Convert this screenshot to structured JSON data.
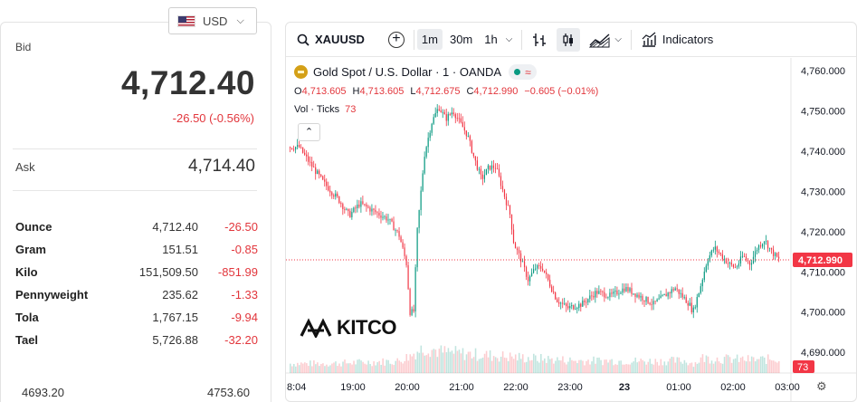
{
  "currency": {
    "label": "USD"
  },
  "bid": {
    "label": "Bid",
    "value": "4,712.40",
    "change": "-26.50 (-0.56%)"
  },
  "ask": {
    "label": "Ask",
    "value": "4,714.40"
  },
  "units": [
    {
      "name": "Ounce",
      "price": "4,712.40",
      "change": "-26.50"
    },
    {
      "name": "Gram",
      "price": "151.51",
      "change": "-0.85"
    },
    {
      "name": "Kilo",
      "price": "151,509.50",
      "change": "-851.99"
    },
    {
      "name": "Pennyweight",
      "price": "235.62",
      "change": "-1.33"
    },
    {
      "name": "Tola",
      "price": "1,767.15",
      "change": "-9.94"
    },
    {
      "name": "Tael",
      "price": "5,726.88",
      "change": "-32.20"
    }
  ],
  "range": {
    "low": "4693.20",
    "high": "4753.60"
  },
  "toolbar": {
    "symbol": "XAUUSD",
    "intervals": [
      "1m",
      "30m",
      "1h"
    ],
    "active_interval": "1m",
    "indicators_label": "Indicators"
  },
  "legend": {
    "title": "Gold Spot / U.S. Dollar · 1 · OANDA",
    "open_key": "O",
    "open": "4,713.605",
    "high_key": "H",
    "high": "4,713.605",
    "low_key": "L",
    "low": "4,712.675",
    "close_key": "C",
    "close": "4,712.990",
    "change": "−0.605 (−0.01%)",
    "vol_label": "Vol · Ticks",
    "vol_value": "73"
  },
  "branding": {
    "logo_text": "KITCO"
  },
  "colors": {
    "up": "#089981",
    "down": "#f23645",
    "last_price": "#f23645",
    "text": "#131722"
  },
  "chart_data": {
    "type": "candlestick",
    "y_ticks": [
      "4,760.000",
      "4,750.000",
      "4,740.000",
      "4,730.000",
      "4,720.000",
      "4,710.000",
      "4,700.000",
      "4,690.000"
    ],
    "y_range": [
      4686,
      4762
    ],
    "x_ticks": [
      "8:04",
      "19:00",
      "20:00",
      "21:00",
      "22:00",
      "23:00",
      "23",
      "01:00",
      "02:00",
      "03:00"
    ],
    "last_price": "4,712.990",
    "last_price_value": 4712.99,
    "last_volume": "73",
    "path": [
      [
        0,
        4741
      ],
      [
        3,
        4741
      ],
      [
        6,
        4737
      ],
      [
        10,
        4732
      ],
      [
        14,
        4728
      ],
      [
        17,
        4724
      ],
      [
        20,
        4727
      ],
      [
        24,
        4725
      ],
      [
        28,
        4723
      ],
      [
        31,
        4719
      ],
      [
        33,
        4712
      ],
      [
        34,
        4700
      ],
      [
        35,
        4700
      ],
      [
        36,
        4720
      ],
      [
        38,
        4739
      ],
      [
        40,
        4747
      ],
      [
        42,
        4751
      ],
      [
        44,
        4748
      ],
      [
        46,
        4750
      ],
      [
        48,
        4747
      ],
      [
        50,
        4744
      ],
      [
        52,
        4738
      ],
      [
        54,
        4733
      ],
      [
        56,
        4736
      ],
      [
        58,
        4736
      ],
      [
        60,
        4730
      ],
      [
        62,
        4724
      ],
      [
        63,
        4717
      ],
      [
        65,
        4713
      ],
      [
        67,
        4708
      ],
      [
        69,
        4711
      ],
      [
        71,
        4711
      ],
      [
        73,
        4707
      ],
      [
        75,
        4703
      ],
      [
        78,
        4701
      ],
      [
        82,
        4702
      ],
      [
        86,
        4705
      ],
      [
        90,
        4704
      ],
      [
        94,
        4706
      ],
      [
        98,
        4704
      ],
      [
        102,
        4702
      ],
      [
        105,
        4704
      ],
      [
        108,
        4706
      ],
      [
        110,
        4704
      ],
      [
        112,
        4702
      ],
      [
        113,
        4700
      ],
      [
        115,
        4706
      ],
      [
        117,
        4713
      ],
      [
        119,
        4716
      ],
      [
        121,
        4714
      ],
      [
        123,
        4712
      ],
      [
        125,
        4711
      ],
      [
        127,
        4714
      ],
      [
        129,
        4712
      ],
      [
        131,
        4716
      ],
      [
        133,
        4718
      ],
      [
        135,
        4715
      ],
      [
        137,
        4713
      ]
    ],
    "volume_profile": [
      [
        0,
        20
      ],
      [
        10,
        20
      ],
      [
        30,
        25
      ],
      [
        34,
        38
      ],
      [
        35,
        45
      ],
      [
        38,
        55
      ],
      [
        42,
        45
      ],
      [
        50,
        40
      ],
      [
        60,
        35
      ],
      [
        70,
        30
      ],
      [
        80,
        26
      ],
      [
        90,
        26
      ],
      [
        100,
        25
      ],
      [
        110,
        26
      ],
      [
        113,
        20
      ],
      [
        115,
        32
      ],
      [
        120,
        30
      ],
      [
        130,
        28
      ],
      [
        137,
        30
      ]
    ]
  }
}
